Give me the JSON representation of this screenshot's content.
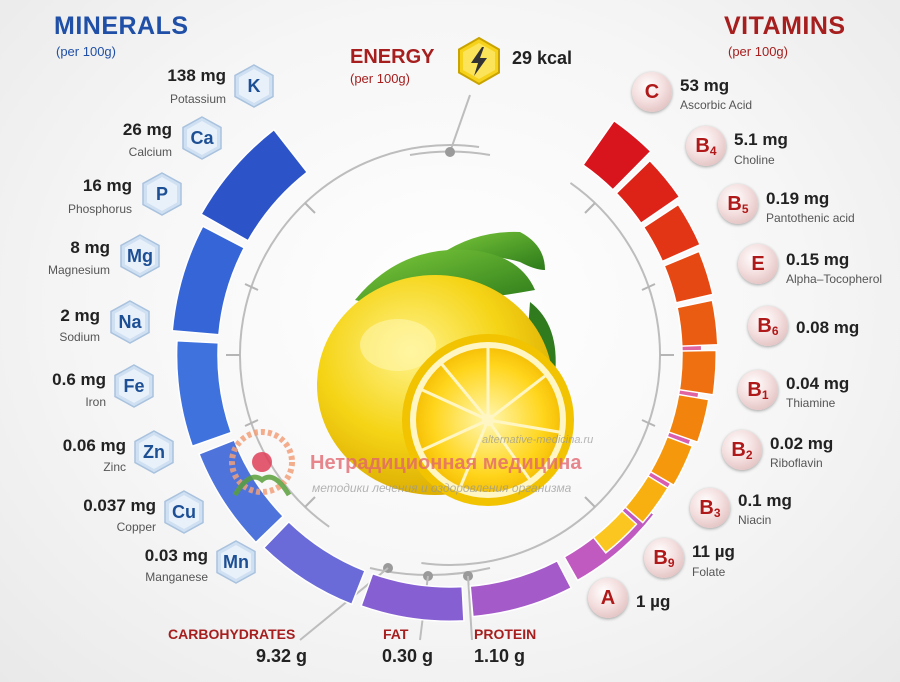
{
  "minerals": {
    "title": "MINERALS",
    "subtitle": "(per 100g)",
    "items": [
      {
        "symbol": "K",
        "amount": "138 mg",
        "name": "Potassium"
      },
      {
        "symbol": "Ca",
        "amount": "26 mg",
        "name": "Calcium"
      },
      {
        "symbol": "P",
        "amount": "16 mg",
        "name": "Phosphorus"
      },
      {
        "symbol": "Mg",
        "amount": "8 mg",
        "name": "Magnesium"
      },
      {
        "symbol": "Na",
        "amount": "2 mg",
        "name": "Sodium"
      },
      {
        "symbol": "Fe",
        "amount": "0.6 mg",
        "name": "Iron"
      },
      {
        "symbol": "Zn",
        "amount": "0.06 mg",
        "name": "Zinc"
      },
      {
        "symbol": "Cu",
        "amount": "0.037 mg",
        "name": "Copper"
      },
      {
        "symbol": "Mn",
        "amount": "0.03 mg",
        "name": "Manganese"
      }
    ]
  },
  "vitamins": {
    "title": "VITAMINS",
    "subtitle": "(per 100g)",
    "items": [
      {
        "letter": "C",
        "sub": "",
        "amount": "53 mg",
        "name": "Ascorbic Acid"
      },
      {
        "letter": "B",
        "sub": "4",
        "amount": "5.1 mg",
        "name": "Choline"
      },
      {
        "letter": "B",
        "sub": "5",
        "amount": "0.19 mg",
        "name": "Pantothenic acid"
      },
      {
        "letter": "E",
        "sub": "",
        "amount": "0.15 mg",
        "name": "Alpha–Tocopherol"
      },
      {
        "letter": "B",
        "sub": "6",
        "amount": "0.08 mg",
        "name": ""
      },
      {
        "letter": "B",
        "sub": "1",
        "amount": "0.04 mg",
        "name": "Thiamine"
      },
      {
        "letter": "B",
        "sub": "2",
        "amount": "0.02 mg",
        "name": "Riboflavin"
      },
      {
        "letter": "B",
        "sub": "3",
        "amount": "0.1 mg",
        "name": "Niacin"
      },
      {
        "letter": "B",
        "sub": "9",
        "amount": "11 µg",
        "name": "Folate"
      },
      {
        "letter": "A",
        "sub": "",
        "amount": "1 µg",
        "name": ""
      }
    ]
  },
  "energy": {
    "title": "ENERGY",
    "subtitle": "(per 100g)",
    "value": "29 kcal",
    "icon": "lightning-icon"
  },
  "nutrients": [
    {
      "label": "CARBOHYDRATES",
      "value": "9.32 g"
    },
    {
      "label": "FAT",
      "value": "0.30 g"
    },
    {
      "label": "PROTEIN",
      "value": "1.10 g"
    }
  ],
  "watermark": {
    "url": "alternative-medicina.ru",
    "title": "Нетрадиционная медицина",
    "tagline": "методики лечения и оздоровления организма"
  },
  "colors": {
    "minerals_accent": "#1f4fa6",
    "vitamins_accent": "#a61e1e",
    "lemon": "#f7d51a"
  }
}
